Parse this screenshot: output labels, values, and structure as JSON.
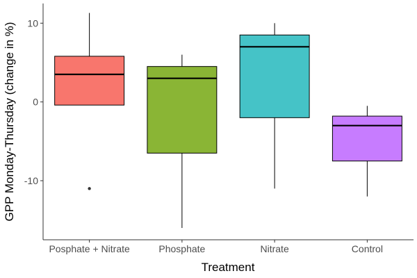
{
  "chart_data": {
    "type": "boxplot",
    "xlabel": "Treatment",
    "ylabel": "GPP Monday-Thursday (change in %)",
    "ylim": [
      -17.5,
      12.5
    ],
    "yticks": [
      -10,
      0,
      10
    ],
    "ytick_labels": [
      "-10",
      "0",
      "10"
    ],
    "grid": false,
    "legend": "none",
    "categories": [
      "Posphate + Nitrate",
      "Phosphate",
      "Nitrate",
      "Control"
    ],
    "boxes": [
      {
        "category": "Posphate + Nitrate",
        "color": "#F8766D",
        "whisker_low": -0.4,
        "q1": -0.4,
        "median": 3.5,
        "q3": 5.8,
        "whisker_high": 11.3,
        "outliers": [
          -11
        ]
      },
      {
        "category": "Phosphate",
        "color": "#8AB535",
        "whisker_low": -16,
        "q1": -6.5,
        "median": 3.0,
        "q3": 4.5,
        "whisker_high": 6.0,
        "outliers": []
      },
      {
        "category": "Nitrate",
        "color": "#45C3C7",
        "whisker_low": -11,
        "q1": -2.0,
        "median": 7.0,
        "q3": 8.5,
        "whisker_high": 10.0,
        "outliers": []
      },
      {
        "category": "Control",
        "color": "#C77CFF",
        "whisker_low": -12,
        "q1": -7.5,
        "median": -3.0,
        "q3": -1.8,
        "whisker_high": -0.5,
        "outliers": []
      }
    ]
  }
}
